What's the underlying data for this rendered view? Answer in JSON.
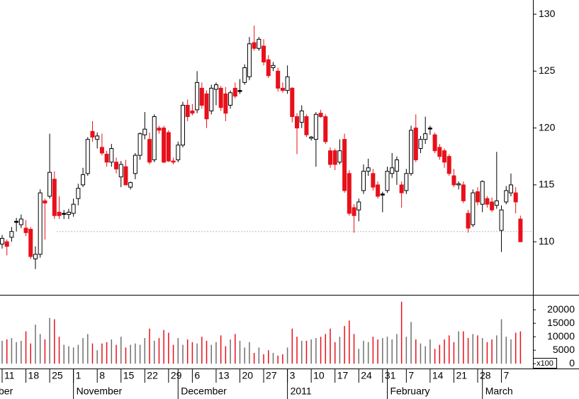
{
  "chart_data": {
    "type": "candlestick",
    "categories": [
      "11",
      null,
      null,
      null,
      null,
      "18",
      null,
      null,
      null,
      null,
      "25",
      null,
      null,
      null,
      null,
      "1",
      null,
      null,
      null,
      null,
      "8",
      null,
      null,
      null,
      null,
      "15",
      null,
      null,
      null,
      null,
      "22",
      null,
      null,
      null,
      null,
      "29",
      null,
      null,
      null,
      null,
      "6",
      null,
      null,
      null,
      null,
      "13",
      null,
      null,
      null,
      null,
      "20",
      null,
      null,
      null,
      null,
      "27",
      null,
      null,
      null,
      null,
      "3",
      null,
      null,
      null,
      null,
      "10",
      null,
      null,
      null,
      null,
      "17",
      null,
      null,
      null,
      null,
      "24",
      null,
      null,
      null,
      null,
      "31",
      null,
      null,
      null,
      null,
      "7",
      null,
      null,
      null,
      null,
      "14",
      null,
      null,
      null,
      null,
      "21",
      null,
      null,
      null,
      null,
      "28",
      null,
      null,
      null,
      null,
      "7",
      null,
      null,
      null,
      null
    ],
    "months": [
      "ber",
      null,
      null,
      null,
      null,
      null,
      null,
      null,
      null,
      null,
      null,
      null,
      null,
      null,
      null,
      "November",
      null,
      null,
      null,
      null,
      null,
      null,
      null,
      null,
      null,
      null,
      null,
      null,
      null,
      null,
      null,
      null,
      null,
      null,
      null,
      null,
      null,
      "December",
      null,
      null,
      null,
      null,
      null,
      null,
      null,
      null,
      null,
      null,
      null,
      null,
      null,
      null,
      null,
      null,
      null,
      null,
      null,
      null,
      null,
      null,
      "2011",
      null,
      null,
      null,
      null,
      null,
      null,
      null,
      null,
      null,
      null,
      null,
      null,
      null,
      null,
      null,
      null,
      null,
      null,
      null,
      null,
      "February",
      null,
      null,
      null,
      null,
      null,
      null,
      null,
      null,
      null,
      null,
      null,
      null,
      null,
      null,
      null,
      null,
      null,
      null,
      null,
      "March",
      null,
      null,
      null,
      null,
      null,
      null,
      null,
      null
    ],
    "open": [
      109.8,
      110.0,
      110.4,
      111.8,
      111.5,
      111.2,
      111.1,
      108.5,
      108.9,
      113.6,
      114.0,
      115.5,
      112.6,
      112.5,
      112.4,
      112.5,
      113.8,
      115.0,
      116.0,
      119.7,
      119.0,
      118.3,
      117.7,
      117.0,
      117.0,
      115.7,
      116.6,
      114.8,
      116.0,
      117.6,
      119.4,
      119.0,
      117.2,
      120.0,
      120.0,
      119.6,
      117.1,
      117.2,
      118.5,
      122.0,
      121.5,
      121.6,
      123.5,
      123.0,
      121.5,
      123.4,
      123.5,
      123.0,
      122.0,
      123.5,
      123.3,
      124.0,
      124.5,
      127.5,
      127.0,
      127.2,
      126.0,
      125.3,
      125.0,
      123.5,
      123.3,
      123.5,
      121.0,
      120.5,
      121.0,
      119.1,
      119.0,
      121.3,
      121.0,
      118.0,
      118.0,
      117.0,
      119.0,
      116.0,
      113.0,
      112.8,
      114.5,
      116.2,
      116.0,
      115.0,
      114.2,
      114.5,
      116.0,
      116.2,
      115.0,
      114.5,
      116.0,
      120.0,
      118.2,
      119.0,
      120.0,
      119.4,
      118.3,
      118.0,
      117.5,
      115.8,
      115.0,
      115.0,
      112.5,
      111.5,
      114.4,
      113.3,
      113.8,
      113.5,
      113.2,
      111.0,
      113.5,
      114.3,
      114.3,
      112.0
    ],
    "high": [
      110.6,
      110.2,
      111.3,
      112.1,
      112.4,
      111.9,
      111.3,
      109.6,
      114.6,
      113.8,
      119.5,
      116.2,
      114.0,
      112.8,
      112.9,
      113.8,
      115.1,
      116.5,
      119.2,
      120.6,
      119.6,
      119.5,
      118.0,
      118.6,
      117.4,
      117.1,
      117.2,
      115.3,
      117.8,
      119.6,
      121.4,
      119.6,
      121.2,
      120.2,
      120.2,
      119.8,
      117.4,
      118.8,
      122.3,
      122.5,
      122.1,
      125.0,
      124.0,
      123.3,
      123.8,
      124.0,
      123.7,
      123.6,
      123.3,
      124.0,
      124.3,
      125.6,
      128.0,
      129.0,
      128.0,
      127.8,
      126.4,
      125.8,
      125.3,
      124.0,
      125.5,
      123.6,
      121.3,
      122.0,
      121.2,
      119.3,
      121.4,
      121.6,
      121.2,
      118.3,
      118.2,
      119.0,
      119.5,
      116.3,
      113.3,
      113.8,
      116.8,
      117.3,
      116.4,
      115.3,
      114.4,
      116.6,
      117.8,
      117.5,
      115.3,
      116.4,
      120.2,
      121.2,
      119.3,
      121.0,
      120.2,
      119.6,
      118.6,
      118.2,
      117.7,
      116.4,
      115.3,
      115.3,
      112.8,
      114.6,
      114.8,
      115.4,
      114.0,
      113.9,
      117.9,
      113.2,
      114.9,
      116.0,
      114.8,
      112.3
    ],
    "low": [
      109.4,
      108.8,
      110.0,
      110.9,
      111.2,
      110.5,
      108.5,
      107.6,
      108.6,
      110.2,
      113.8,
      112.0,
      112.0,
      112.0,
      112.0,
      112.2,
      113.2,
      114.8,
      115.8,
      118.8,
      118.2,
      117.6,
      116.6,
      116.6,
      116.0,
      114.8,
      115.0,
      114.6,
      115.5,
      117.2,
      119.0,
      116.8,
      117.0,
      119.5,
      116.9,
      117.0,
      116.8,
      117.0,
      118.3,
      120.6,
      121.1,
      121.3,
      121.7,
      120.0,
      121.2,
      122.0,
      121.5,
      120.6,
      121.7,
      122.6,
      123.0,
      123.8,
      124.2,
      126.8,
      126.8,
      125.5,
      124.4,
      125.0,
      123.2,
      123.1,
      123.0,
      120.5,
      117.7,
      120.0,
      119.2,
      118.9,
      116.6,
      120.9,
      118.6,
      116.5,
      116.3,
      116.8,
      114.3,
      112.3,
      110.8,
      111.8,
      114.2,
      115.8,
      114.5,
      113.8,
      112.6,
      114.3,
      115.6,
      115.0,
      113.0,
      114.2,
      115.8,
      117.0,
      117.8,
      118.6,
      119.4,
      117.8,
      117.2,
      116.5,
      115.8,
      114.8,
      114.6,
      113.4,
      110.8,
      111.3,
      113.2,
      112.6,
      113.0,
      112.6,
      112.9,
      109.1,
      113.3,
      114.0,
      112.5,
      110.0
    ],
    "close": [
      110.3,
      109.6,
      110.9,
      111.8,
      112.0,
      110.8,
      108.7,
      108.9,
      114.3,
      113.4,
      116.1,
      112.3,
      112.3,
      112.5,
      112.6,
      113.3,
      114.7,
      115.9,
      119.0,
      119.2,
      119.3,
      117.8,
      117.0,
      118.2,
      116.4,
      116.8,
      115.0,
      115.2,
      117.6,
      119.5,
      119.9,
      117.0,
      121.0,
      119.8,
      117.0,
      117.1,
      117.0,
      118.5,
      122.0,
      121.0,
      121.3,
      124.0,
      122.0,
      120.8,
      123.5,
      123.8,
      121.8,
      121.3,
      123.1,
      122.8,
      123.3,
      125.3,
      127.4,
      127.0,
      127.8,
      125.8,
      124.6,
      125.5,
      123.5,
      123.3,
      124.5,
      121.0,
      120.0,
      121.5,
      119.4,
      119.2,
      121.2,
      121.0,
      118.8,
      116.8,
      116.8,
      118.0,
      114.5,
      112.5,
      112.3,
      113.5,
      116.2,
      116.5,
      114.8,
      114.0,
      114.2,
      116.2,
      116.5,
      117.2,
      114.3,
      116.0,
      119.8,
      117.2,
      119.0,
      119.5,
      120.0,
      118.0,
      117.5,
      117.0,
      116.0,
      115.0,
      115.1,
      113.6,
      111.2,
      114.3,
      113.5,
      115.3,
      113.3,
      112.8,
      113.6,
      112.8,
      114.5,
      115.0,
      113.5,
      110.0
    ],
    "volume": [
      8500,
      9000,
      9500,
      8000,
      8500,
      12000,
      7500,
      14500,
      11000,
      9000,
      17000,
      16500,
      10000,
      7000,
      6500,
      6000,
      7000,
      9500,
      11000,
      7500,
      5000,
      7500,
      8000,
      9000,
      7000,
      10000,
      6000,
      7000,
      7500,
      7000,
      9500,
      13000,
      8500,
      9500,
      12500,
      11500,
      7000,
      9500,
      7000,
      9000,
      8000,
      7500,
      10000,
      8500,
      7000,
      8000,
      10500,
      6500,
      9000,
      11000,
      8500,
      6000,
      8000,
      4000,
      6000,
      3500,
      5000,
      4000,
      3000,
      3500,
      6000,
      13000,
      10000,
      8500,
      8500,
      9000,
      9500,
      10000,
      11000,
      13000,
      8000,
      10000,
      14000,
      16000,
      11000,
      5500,
      8500,
      8000,
      10000,
      9000,
      9500,
      10000,
      9000,
      11000,
      23000,
      10000,
      15500,
      9000,
      7500,
      6500,
      9000,
      5500,
      7000,
      9000,
      10500,
      8000,
      12000,
      12000,
      9500,
      11000,
      10500,
      9500,
      8000,
      9000,
      10500,
      16500,
      10000,
      9000,
      11500,
      12000
    ],
    "ylim": [
      105.4,
      131.25
    ],
    "yticks": [
      110,
      115,
      120,
      125,
      130
    ],
    "volume_ylim": [
      -1800,
      25300
    ],
    "volume_ticks": [
      0,
      5000,
      10000,
      15000,
      20000
    ],
    "volume_unit_label": "x100",
    "reference_line": 110.9,
    "up_color": "#ffffff",
    "down_color": "#e8101a",
    "flat_color": "#000000",
    "up_volume_color": "#707070"
  }
}
